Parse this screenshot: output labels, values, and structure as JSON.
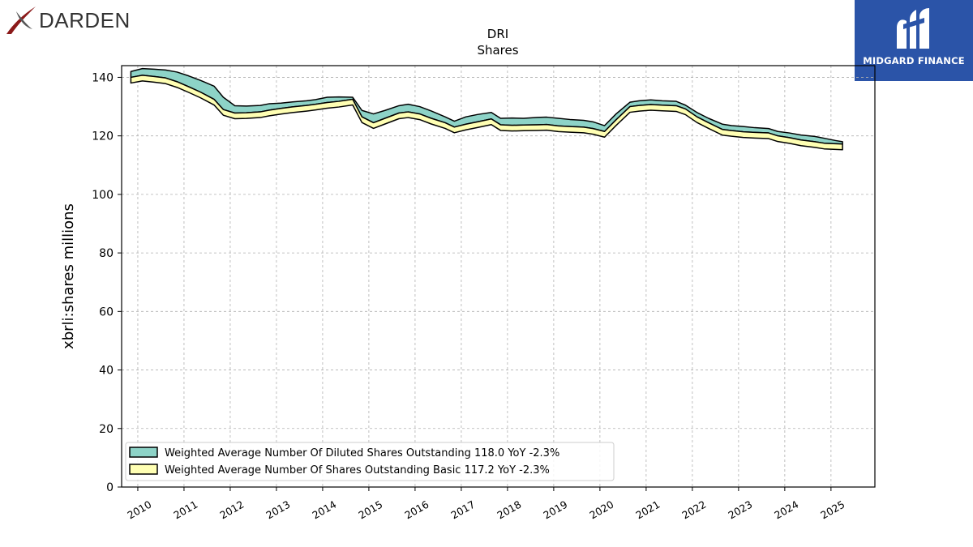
{
  "logos": {
    "left": {
      "text": "DARDEN",
      "icon": "darden-swoosh-icon",
      "color": "#333333",
      "accent": "#8b1a1a"
    },
    "right": {
      "text": "MIDGARD FINANCE",
      "icon": "midgard-finance-logo-icon",
      "background": "#2b54a8"
    }
  },
  "chart_data": {
    "type": "area",
    "title": "DRI",
    "subtitle": "Shares",
    "xlabel": "",
    "ylabel": "xbrli:shares millions",
    "ylim": [
      0,
      144
    ],
    "yticks": [
      0,
      20,
      40,
      60,
      80,
      100,
      120,
      140
    ],
    "xlim": [
      2009.65,
      2025.95
    ],
    "xticks": [
      2010,
      2011,
      2012,
      2013,
      2014,
      2015,
      2016,
      2017,
      2018,
      2019,
      2020,
      2021,
      2022,
      2023,
      2024,
      2025
    ],
    "grid": true,
    "legend_placement": "lower-left",
    "series": [
      {
        "name": "Weighted Average Number Of Diluted Shares Outstanding  118.0 YoY -2.3%",
        "color": "#8dd3c7",
        "lower": "basic",
        "x": [
          2009.85,
          2010.1,
          2010.35,
          2010.6,
          2010.85,
          2011.1,
          2011.35,
          2011.65,
          2011.85,
          2012.1,
          2012.35,
          2012.65,
          2012.85,
          2013.1,
          2013.35,
          2013.65,
          2013.85,
          2014.1,
          2014.35,
          2014.65,
          2014.85,
          2015.1,
          2015.35,
          2015.65,
          2015.85,
          2016.1,
          2016.35,
          2016.65,
          2016.85,
          2017.1,
          2017.35,
          2017.65,
          2017.85,
          2018.1,
          2018.35,
          2018.65,
          2018.85,
          2019.1,
          2019.35,
          2019.65,
          2019.85,
          2020.1,
          2020.35,
          2020.65,
          2020.85,
          2021.1,
          2021.35,
          2021.65,
          2021.85,
          2022.1,
          2022.35,
          2022.65,
          2022.85,
          2023.1,
          2023.35,
          2023.65,
          2023.85,
          2024.1,
          2024.35,
          2024.65,
          2024.85,
          2025.1,
          2025.25
        ],
        "values": [
          142.0,
          143.0,
          142.8,
          142.5,
          141.8,
          140.5,
          139.0,
          137.0,
          133.2,
          130.3,
          130.2,
          130.4,
          131.0,
          131.2,
          131.6,
          132.0,
          132.4,
          133.2,
          133.3,
          133.2,
          128.7,
          127.5,
          128.7,
          130.3,
          130.8,
          130.0,
          128.5,
          126.5,
          125.0,
          126.5,
          127.3,
          128.0,
          126.0,
          126.1,
          126.0,
          126.3,
          126.4,
          126.0,
          125.6,
          125.3,
          124.8,
          123.5,
          127.5,
          131.5,
          132.0,
          132.3,
          132.0,
          131.8,
          130.5,
          128.0,
          126.0,
          124.0,
          123.5,
          123.2,
          122.8,
          122.5,
          121.5,
          121.0,
          120.3,
          119.8,
          119.2,
          118.4,
          118.0
        ]
      },
      {
        "name": "Weighted Average Number Of Shares Outstanding Basic  117.2 YoY -2.3%",
        "color": "#ffffb3",
        "lower": 0,
        "x": [
          2009.85,
          2010.1,
          2010.35,
          2010.6,
          2010.85,
          2011.1,
          2011.35,
          2011.65,
          2011.85,
          2012.1,
          2012.35,
          2012.65,
          2012.85,
          2013.1,
          2013.35,
          2013.65,
          2013.85,
          2014.1,
          2014.35,
          2014.65,
          2014.85,
          2015.1,
          2015.35,
          2015.65,
          2015.85,
          2016.1,
          2016.35,
          2016.65,
          2016.85,
          2017.1,
          2017.35,
          2017.65,
          2017.85,
          2018.1,
          2018.35,
          2018.65,
          2018.85,
          2019.1,
          2019.35,
          2019.65,
          2019.85,
          2020.1,
          2020.35,
          2020.65,
          2020.85,
          2021.1,
          2021.35,
          2021.65,
          2021.85,
          2022.1,
          2022.35,
          2022.65,
          2022.85,
          2023.1,
          2023.35,
          2023.65,
          2023.85,
          2024.1,
          2024.35,
          2024.65,
          2024.85,
          2025.1,
          2025.25
        ],
        "values": [
          140.0,
          140.7,
          140.3,
          139.8,
          138.5,
          136.8,
          135.0,
          132.5,
          129.0,
          127.8,
          127.9,
          128.2,
          128.8,
          129.4,
          129.9,
          130.4,
          130.8,
          131.4,
          131.8,
          132.5,
          126.5,
          124.5,
          126.0,
          127.8,
          128.2,
          127.5,
          126.0,
          124.5,
          123.0,
          124.0,
          124.8,
          125.8,
          123.8,
          123.6,
          123.7,
          123.8,
          123.9,
          123.4,
          123.2,
          123.0,
          122.5,
          121.5,
          125.5,
          130.0,
          130.4,
          130.7,
          130.5,
          130.3,
          129.2,
          126.5,
          124.5,
          122.2,
          121.8,
          121.4,
          121.2,
          121.0,
          120.0,
          119.4,
          118.6,
          118.0,
          117.5,
          117.3,
          117.2
        ]
      }
    ]
  }
}
